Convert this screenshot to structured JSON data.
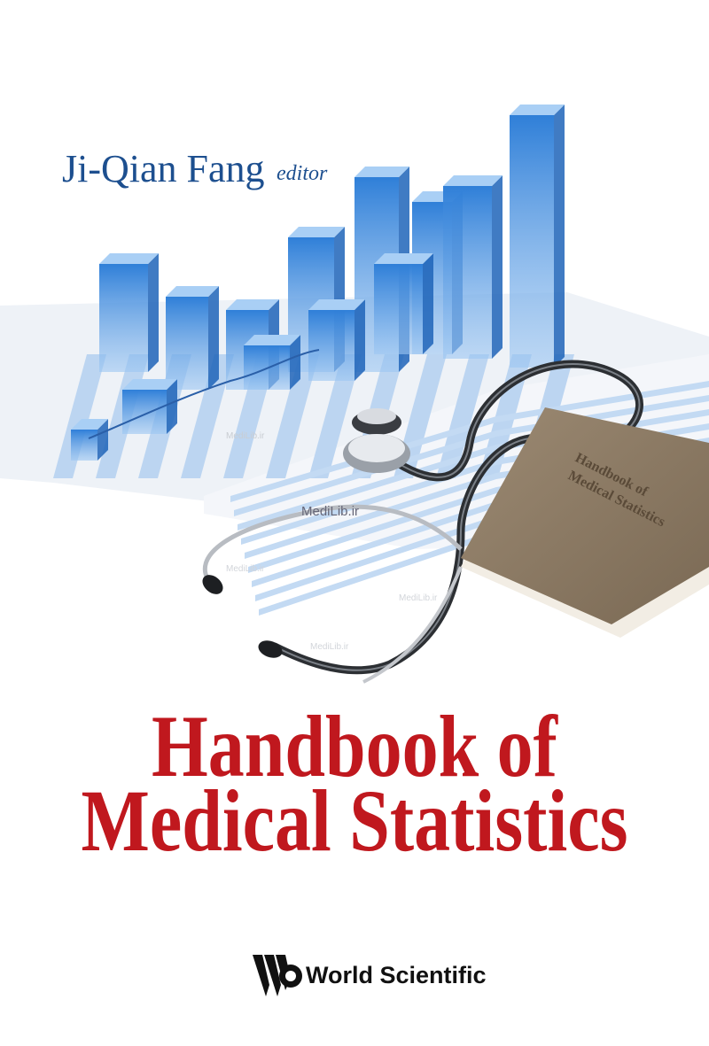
{
  "cover": {
    "editor": {
      "name": "Ji-Qian Fang",
      "role": "editor"
    },
    "title": {
      "lines": [
        "Handbook of",
        "Medical Statistics"
      ]
    },
    "illustration": {
      "book_label": [
        "Handbook of",
        "Medical Statistics"
      ],
      "watermark": "MediLib.ir"
    },
    "publisher": "World Scientific"
  }
}
